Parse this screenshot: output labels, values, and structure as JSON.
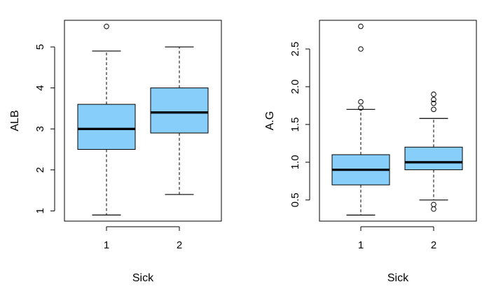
{
  "chart_data": [
    {
      "type": "box",
      "xlabel": "Sick",
      "ylabel": "ALB",
      "categories": [
        "1",
        "2"
      ],
      "ylim": [
        0.75,
        5.65
      ],
      "yticks": [
        1,
        2,
        3,
        4,
        5
      ],
      "grid": false,
      "box_color": "#87CEFA",
      "boxes": [
        {
          "category": "1",
          "whisker_low": 0.9,
          "q1": 2.5,
          "median": 3.0,
          "q3": 3.6,
          "whisker_high": 4.9,
          "outliers": [
            5.5
          ]
        },
        {
          "category": "2",
          "whisker_low": 1.4,
          "q1": 2.9,
          "median": 3.4,
          "q3": 4.0,
          "whisker_high": 5.0,
          "outliers": []
        }
      ]
    },
    {
      "type": "box",
      "xlabel": "Sick",
      "ylabel": "A.G",
      "categories": [
        "1",
        "2"
      ],
      "ylim": [
        0.22,
        2.88
      ],
      "yticks": [
        0.5,
        1.0,
        1.5,
        2.0,
        2.5
      ],
      "ytick_labels": [
        "0.5",
        "1.0",
        "1.5",
        "2.0",
        "2.5"
      ],
      "grid": false,
      "box_color": "#87CEFA",
      "boxes": [
        {
          "category": "1",
          "whisker_low": 0.3,
          "q1": 0.7,
          "median": 0.9,
          "q3": 1.1,
          "whisker_high": 1.7,
          "outliers": [
            1.72,
            1.8,
            2.5,
            2.8
          ]
        },
        {
          "category": "2",
          "whisker_low": 0.5,
          "q1": 0.9,
          "median": 1.0,
          "q3": 1.2,
          "whisker_high": 1.58,
          "outliers": [
            1.7,
            1.78,
            1.83,
            1.9,
            0.44,
            0.38
          ]
        }
      ]
    }
  ]
}
